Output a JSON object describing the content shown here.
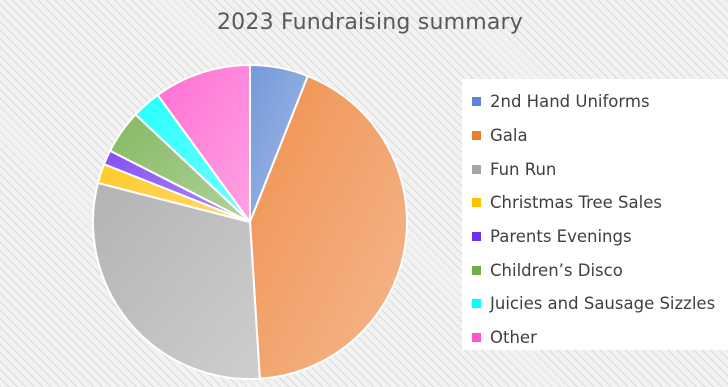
{
  "chart_data": {
    "type": "pie",
    "title": "2023 Fundraising summary",
    "categories": [
      "2nd Hand Uniforms",
      "Gala",
      "Fun Run",
      "Christmas Tree Sales",
      "Parents Evenings",
      "Children’s Disco",
      "Juicies and Sausage Sizzles",
      "Other"
    ],
    "values": [
      6,
      43,
      30,
      2,
      1.5,
      4.5,
      3,
      10
    ],
    "colors": [
      "#5b86d4",
      "#ed7d31",
      "#a5a5a5",
      "#ffc000",
      "#7030f0",
      "#70ad47",
      "#00ffff",
      "#ff55cc"
    ],
    "legend_position": "right"
  }
}
